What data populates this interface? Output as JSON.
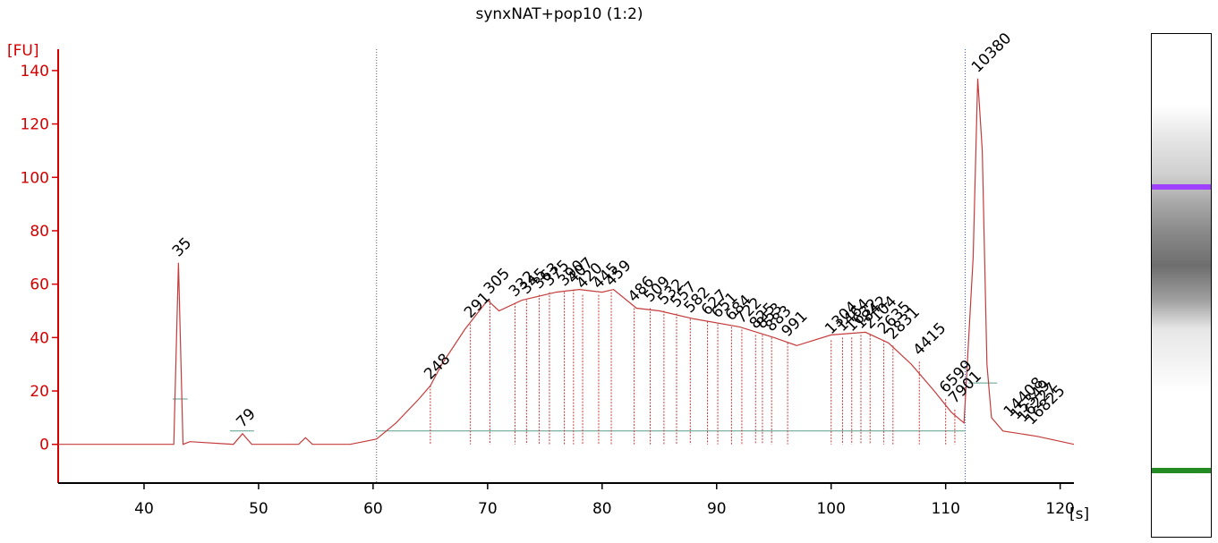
{
  "chart_data": {
    "type": "line",
    "title": "synxNAT+pop10 (1:2)",
    "xlabel": "[s]",
    "ylabel": "[FU]",
    "xlim": [
      32.5,
      121.2
    ],
    "ylim": [
      -14.5,
      148
    ],
    "x_ticks": [
      40,
      50,
      60,
      70,
      80,
      90,
      100,
      110,
      120
    ],
    "y_ticks": [
      0,
      20,
      40,
      60,
      80,
      100,
      120,
      140
    ],
    "grid": false,
    "colors": {
      "trace": "#c43c3c",
      "axis": "#d40000",
      "baseline": "#5a9c8c",
      "lower_marker": "#228b22",
      "upper_marker": "#a040ff",
      "region_line": "#555555"
    },
    "region": {
      "start": 60.3,
      "end": 111.7
    },
    "series": [
      {
        "x": [
          32.5,
          40,
          42.6,
          43.0,
          43.4,
          44,
          47.8,
          48.6,
          49.4,
          53.5,
          54.1,
          54.7,
          58,
          60.3,
          62,
          64,
          65,
          66,
          68,
          70,
          71,
          73,
          75,
          76,
          78,
          80,
          81,
          83,
          85,
          88,
          92,
          95,
          97,
          100,
          103,
          105,
          107,
          109,
          110.5,
          111.6,
          112.4,
          112.8,
          113.2,
          113.6,
          114,
          115,
          118,
          121.2
        ],
        "y": [
          0,
          0,
          0,
          68,
          0,
          1,
          0,
          4,
          0,
          0,
          2.5,
          0,
          0,
          2,
          8,
          17,
          22,
          30,
          43,
          54,
          50,
          54,
          56,
          57,
          58,
          57,
          58,
          51,
          50,
          47,
          44,
          40,
          37,
          41,
          42,
          38,
          30,
          20,
          12,
          8,
          70,
          137,
          110,
          30,
          10,
          5,
          3,
          0
        ]
      }
    ],
    "peaks": [
      {
        "label": "35",
        "x": 43.0,
        "y": 68,
        "color": "#228b22"
      },
      {
        "label": "79",
        "x": 48.6,
        "y": 4
      },
      {
        "label": "248",
        "x": 65.0,
        "y": 22
      },
      {
        "label": "291",
        "x": 68.5,
        "y": 45
      },
      {
        "label": "305",
        "x": 70.2,
        "y": 54
      },
      {
        "label": "332",
        "x": 72.4,
        "y": 53
      },
      {
        "label": "345",
        "x": 73.4,
        "y": 54
      },
      {
        "label": "363",
        "x": 74.5,
        "y": 56
      },
      {
        "label": "375",
        "x": 75.4,
        "y": 57
      },
      {
        "label": "390",
        "x": 76.7,
        "y": 57
      },
      {
        "label": "407",
        "x": 77.5,
        "y": 58
      },
      {
        "label": "420",
        "x": 78.3,
        "y": 56
      },
      {
        "label": "445",
        "x": 79.7,
        "y": 56
      },
      {
        "label": "459",
        "x": 80.8,
        "y": 57
      },
      {
        "label": "486",
        "x": 82.8,
        "y": 51
      },
      {
        "label": "509",
        "x": 84.2,
        "y": 51
      },
      {
        "label": "532",
        "x": 85.4,
        "y": 50
      },
      {
        "label": "557",
        "x": 86.5,
        "y": 49
      },
      {
        "label": "582",
        "x": 87.7,
        "y": 47
      },
      {
        "label": "627",
        "x": 89.2,
        "y": 46
      },
      {
        "label": "651",
        "x": 90.1,
        "y": 45
      },
      {
        "label": "684",
        "x": 91.3,
        "y": 44
      },
      {
        "label": "722",
        "x": 92.2,
        "y": 43
      },
      {
        "label": "825",
        "x": 93.4,
        "y": 41
      },
      {
        "label": "853",
        "x": 94.0,
        "y": 41
      },
      {
        "label": "883",
        "x": 94.8,
        "y": 40
      },
      {
        "label": "991",
        "x": 96.2,
        "y": 38
      },
      {
        "label": "1304",
        "x": 100.0,
        "y": 39
      },
      {
        "label": "1464",
        "x": 101.0,
        "y": 40
      },
      {
        "label": "1632",
        "x": 101.8,
        "y": 40
      },
      {
        "label": "1842",
        "x": 102.6,
        "y": 41
      },
      {
        "label": "2104",
        "x": 103.4,
        "y": 41
      },
      {
        "label": "2635",
        "x": 104.6,
        "y": 39
      },
      {
        "label": "2831",
        "x": 105.4,
        "y": 37
      },
      {
        "label": "4415",
        "x": 107.7,
        "y": 31
      },
      {
        "label": "6599",
        "x": 110.0,
        "y": 17
      },
      {
        "label": "7901",
        "x": 110.8,
        "y": 13
      },
      {
        "label": "10380",
        "x": 112.8,
        "y": 137,
        "color": "#a040ff"
      },
      {
        "label": "14408",
        "x": 115.6,
        "y": 8
      },
      {
        "label": "15349",
        "x": 116.2,
        "y": 7
      },
      {
        "label": "16227",
        "x": 116.8,
        "y": 6
      },
      {
        "label": "16825",
        "x": 117.5,
        "y": 5
      }
    ]
  }
}
